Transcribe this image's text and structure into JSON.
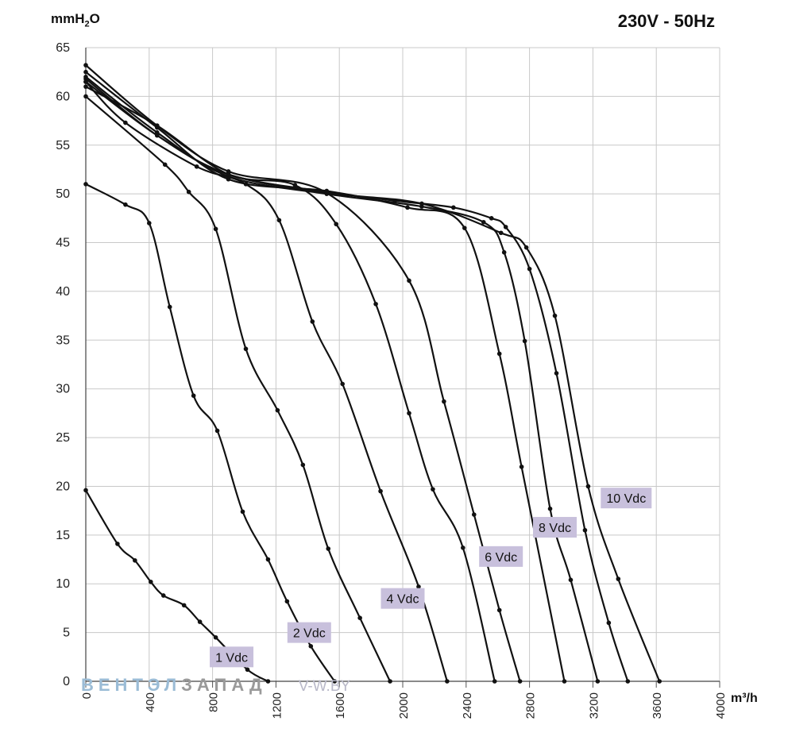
{
  "header": {
    "title": "230V - 50Hz",
    "ylabel_main": "mmH",
    "ylabel_sub": "2",
    "ylabel_tail": "O",
    "xlabel": "m³/h"
  },
  "watermark": {
    "part1": "ВЕНТЭЛ",
    "part2": "ЗАПАД",
    "part3": "V-W.BY"
  },
  "colors": {
    "curve": "#111111",
    "grid": "#c8c8c8",
    "label_bg": "#c8c0dc"
  },
  "chart_data": {
    "type": "line",
    "title": "230V - 50Hz",
    "xlabel": "m³/h",
    "ylabel": "mmH2O",
    "xlim": [
      0,
      4000
    ],
    "ylim": [
      0,
      65
    ],
    "xticks": [
      "0",
      "400",
      "800",
      "1200",
      "1600",
      "2000",
      "2400",
      "2800",
      "3200",
      "3600",
      "4000"
    ],
    "yticks": [
      "0",
      "5",
      "10",
      "15",
      "20",
      "25",
      "30",
      "35",
      "40",
      "45",
      "50",
      "55",
      "60",
      "65"
    ],
    "grid": true,
    "series": [
      {
        "name": "1 Vdc",
        "x": [
          0,
          200,
          310,
          410,
          490,
          620,
          720,
          820,
          1020,
          1150
        ],
        "y": [
          19.6,
          14.1,
          12.4,
          10.2,
          8.8,
          7.8,
          6.1,
          4.5,
          1.2,
          0
        ]
      },
      {
        "name": "2 Vdc",
        "x": [
          0,
          250,
          400,
          530,
          680,
          830,
          990,
          1150,
          1270,
          1420,
          1570
        ],
        "y": [
          51,
          48.9,
          47.0,
          38.4,
          29.3,
          25.7,
          17.4,
          12.5,
          8.2,
          3.6,
          0
        ]
      },
      {
        "name": "4 Vdc",
        "x": [
          0,
          500,
          650,
          820,
          1010,
          1210,
          1370,
          1530,
          1730,
          1920
        ],
        "y": [
          60,
          53,
          50.2,
          46.4,
          34.1,
          27.8,
          22.2,
          13.6,
          6.5,
          0
        ]
      },
      {
        "name": "6 Vdc",
        "x": [
          0,
          250,
          700,
          1010,
          1220,
          1430,
          1620,
          1860,
          2100,
          2280
        ],
        "y": [
          61.5,
          57.3,
          52.8,
          51.0,
          47.3,
          36.9,
          30.5,
          19.5,
          9.7,
          0
        ]
      },
      {
        "name": "",
        "x": [
          0,
          450,
          900,
          1320,
          1580,
          1830,
          2040,
          2190,
          2380,
          2580
        ],
        "y": [
          61.0,
          57.0,
          52.0,
          50.9,
          46.9,
          38.7,
          27.5,
          19.7,
          13.7,
          0
        ]
      },
      {
        "name": "8 Vdc",
        "x": [
          0,
          450,
          900,
          1520,
          2040,
          2260,
          2450,
          2610,
          2740
        ],
        "y": [
          63.2,
          57.0,
          52.3,
          50.1,
          41.1,
          28.7,
          17.1,
          7.3,
          0
        ]
      },
      {
        "name": "",
        "x": [
          0,
          450,
          900,
          1520,
          2030,
          2390,
          2610,
          2750,
          3020
        ],
        "y": [
          62.5,
          56.8,
          51.5,
          50.3,
          48.6,
          46.5,
          33.6,
          22.0,
          0
        ]
      },
      {
        "name": "",
        "x": [
          0,
          450,
          900,
          1520,
          2120,
          2510,
          2640,
          2770,
          2930,
          3060,
          3230
        ],
        "y": [
          62.0,
          56.3,
          51.8,
          50.0,
          48.7,
          47.1,
          44.0,
          34.9,
          17.7,
          10.4,
          0
        ]
      },
      {
        "name": "10 Vdc",
        "x": [
          0,
          450,
          900,
          1520,
          1950,
          2320,
          2560,
          2650,
          2800,
          2970,
          3150,
          3300,
          3420
        ],
        "y": [
          61.8,
          56.0,
          52.0,
          50.2,
          49.3,
          48.6,
          47.5,
          46.6,
          42.3,
          31.6,
          15.5,
          6.0,
          0
        ]
      },
      {
        "name": "",
        "x": [
          0,
          450,
          900,
          1520,
          2120,
          2620,
          2780,
          2960,
          3170,
          3360,
          3620
        ],
        "y": [
          61.5,
          56.0,
          52.0,
          50.1,
          49.0,
          46.0,
          44.5,
          37.5,
          20.0,
          10.5,
          0
        ]
      }
    ],
    "markers": [
      {
        "x": [
          0,
          200,
          310,
          410,
          490,
          620,
          720,
          820,
          1020,
          1150
        ],
        "y": [
          19.6,
          14.1,
          12.4,
          10.2,
          8.8,
          7.8,
          6.1,
          4.5,
          1.2,
          0
        ]
      },
      {
        "x": [
          0,
          250,
          400,
          530,
          680,
          830,
          990,
          1150,
          1270,
          1420,
          1570
        ],
        "y": [
          51,
          48.9,
          47.0,
          38.4,
          29.3,
          25.7,
          17.4,
          12.5,
          8.2,
          3.6,
          0
        ]
      }
    ],
    "data_labels": [
      {
        "text": "1 Vdc",
        "x": 920,
        "y": 2.5
      },
      {
        "text": "2 Vdc",
        "x": 1410,
        "y": 5.0
      },
      {
        "text": "4 Vdc",
        "x": 2000,
        "y": 8.5
      },
      {
        "text": "6 Vdc",
        "x": 2620,
        "y": 12.8
      },
      {
        "text": "8 Vdc",
        "x": 2960,
        "y": 15.8
      },
      {
        "text": "10 Vdc",
        "x": 3410,
        "y": 18.8
      }
    ]
  }
}
